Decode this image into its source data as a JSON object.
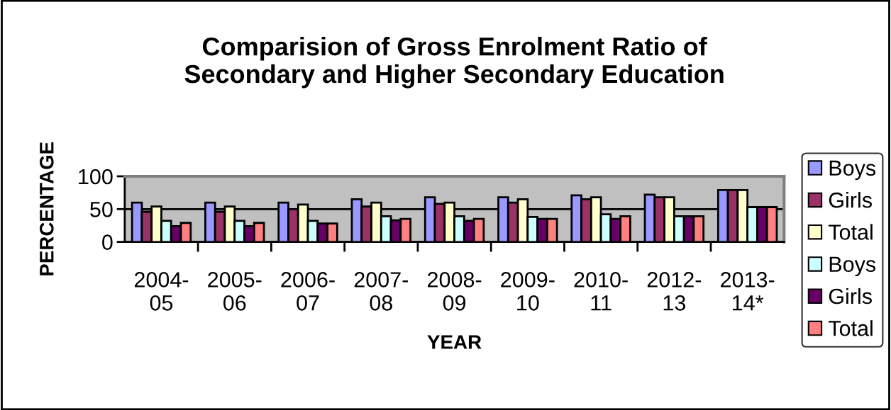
{
  "chart_data": {
    "type": "bar",
    "title": "Comparision of Gross Enrolment Ratio of\nSecondary and Higher Secondary Education",
    "xlabel": "YEAR",
    "ylabel": "PERCENTAGE",
    "categories": [
      "2004-\n05",
      "2005-\n06",
      "2006-\n07",
      "2007-\n08",
      "2008-\n09",
      "2009-\n10",
      "2010-\n11",
      "2012-\n13",
      "2013-\n14*"
    ],
    "series": [
      {
        "name": "Boys",
        "color": "#9999ff",
        "values": [
          60,
          60,
          60,
          65,
          68,
          68,
          71,
          72,
          79
        ]
      },
      {
        "name": "Girls",
        "color": "#993366",
        "values": [
          46,
          46,
          50,
          54,
          58,
          60,
          65,
          68,
          79
        ]
      },
      {
        "name": "Total",
        "color": "#ffffcc",
        "values": [
          54,
          54,
          57,
          60,
          60,
          65,
          68,
          68,
          79
        ]
      },
      {
        "name": "Boys",
        "color": "#ccffff",
        "values": [
          32,
          32,
          32,
          39,
          39,
          38,
          42,
          39,
          53
        ]
      },
      {
        "name": "Girls",
        "color": "#660066",
        "values": [
          24,
          24,
          28,
          33,
          32,
          35,
          35,
          39,
          53
        ]
      },
      {
        "name": "Total",
        "color": "#ff8080",
        "values": [
          29,
          29,
          28,
          35,
          35,
          35,
          39,
          39,
          53
        ]
      }
    ],
    "ylim": [
      0,
      100
    ],
    "yticks": [
      0,
      50,
      100
    ],
    "grid": "y",
    "legend": "right"
  }
}
